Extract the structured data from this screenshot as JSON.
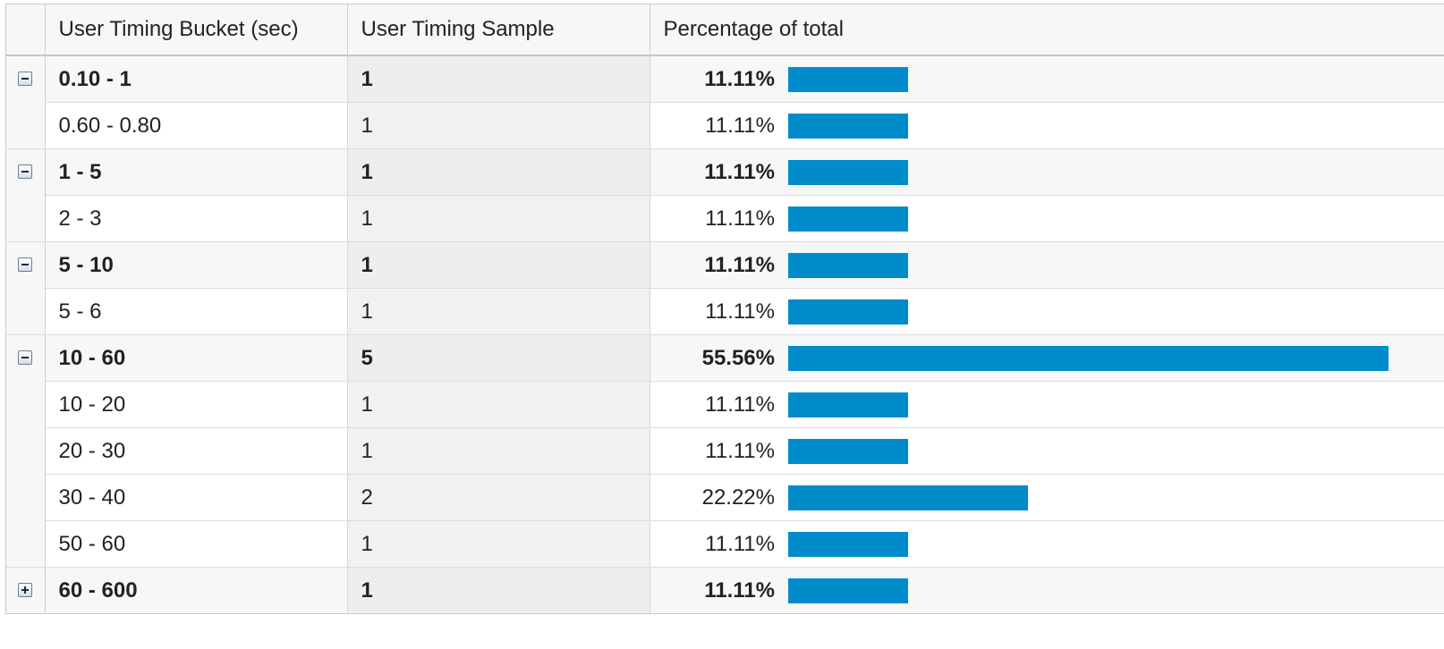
{
  "colors": {
    "bar": "#008bcb",
    "header_bg": "#f7f7f7",
    "group_bg": "#f7f7f7",
    "sample_col_bg": "#f1f1f1"
  },
  "table": {
    "headers": {
      "bucket": "User Timing Bucket (sec)",
      "sample": "User Timing Sample",
      "percentage": "Percentage of total"
    },
    "rows": [
      {
        "type": "group",
        "expanded": true,
        "toggle_icon": "collapse-icon",
        "bucket": "0.10 - 1",
        "sample": "1",
        "percentage": "11.11%",
        "fraction": 0.1111
      },
      {
        "type": "child",
        "bucket": "0.60 - 0.80",
        "sample": "1",
        "percentage": "11.11%",
        "fraction": 0.1111
      },
      {
        "type": "group",
        "expanded": true,
        "toggle_icon": "collapse-icon",
        "bucket": "1 - 5",
        "sample": "1",
        "percentage": "11.11%",
        "fraction": 0.1111
      },
      {
        "type": "child",
        "bucket": "2 - 3",
        "sample": "1",
        "percentage": "11.11%",
        "fraction": 0.1111
      },
      {
        "type": "group",
        "expanded": true,
        "toggle_icon": "collapse-icon",
        "bucket": "5 - 10",
        "sample": "1",
        "percentage": "11.11%",
        "fraction": 0.1111
      },
      {
        "type": "child",
        "bucket": "5 - 6",
        "sample": "1",
        "percentage": "11.11%",
        "fraction": 0.1111
      },
      {
        "type": "group",
        "expanded": true,
        "toggle_icon": "collapse-icon",
        "bucket": "10 - 60",
        "sample": "5",
        "percentage": "55.56%",
        "fraction": 0.5556
      },
      {
        "type": "child",
        "bucket": "10 - 20",
        "sample": "1",
        "percentage": "11.11%",
        "fraction": 0.1111
      },
      {
        "type": "child",
        "bucket": "20 - 30",
        "sample": "1",
        "percentage": "11.11%",
        "fraction": 0.1111
      },
      {
        "type": "child",
        "bucket": "30 - 40",
        "sample": "2",
        "percentage": "22.22%",
        "fraction": 0.2222
      },
      {
        "type": "child",
        "bucket": "50 - 60",
        "sample": "1",
        "percentage": "11.11%",
        "fraction": 0.1111
      },
      {
        "type": "group",
        "expanded": false,
        "toggle_icon": "expand-icon",
        "bucket": "60 - 600",
        "sample": "1",
        "percentage": "11.11%",
        "fraction": 0.1111
      }
    ]
  }
}
